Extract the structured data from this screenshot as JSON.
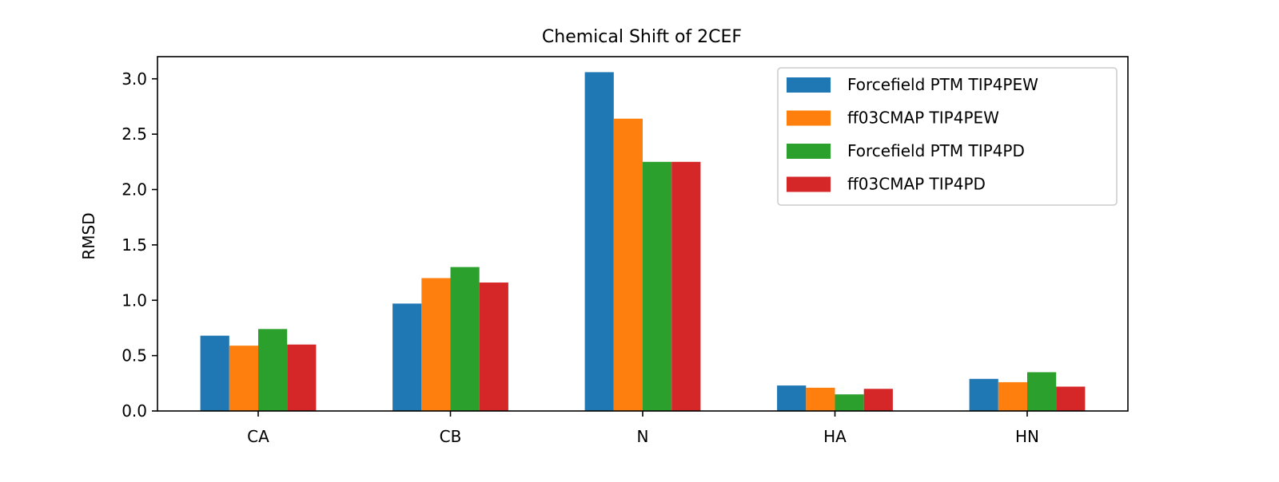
{
  "chart_data": {
    "type": "bar",
    "title": "Chemical Shift of 2CEF",
    "xlabel": "",
    "ylabel": "RMSD",
    "categories": [
      "CA",
      "CB",
      "N",
      "HA",
      "HN"
    ],
    "ylim": [
      0,
      3.2
    ],
    "yticks": [
      0.0,
      0.5,
      1.0,
      1.5,
      2.0,
      2.5,
      3.0
    ],
    "ytick_labels": [
      "0.0",
      "0.5",
      "1.0",
      "1.5",
      "2.0",
      "2.5",
      "3.0"
    ],
    "legend_position": "top-right",
    "grid": false,
    "series": [
      {
        "name": "Forcefield PTM TIP4PEW",
        "color": "#1f77b4",
        "values": [
          0.68,
          0.97,
          3.06,
          0.23,
          0.29
        ]
      },
      {
        "name": "ff03CMAP TIP4PEW",
        "color": "#ff7f0e",
        "values": [
          0.59,
          1.2,
          2.64,
          0.21,
          0.26
        ]
      },
      {
        "name": "Forcefield PTM TIP4PD",
        "color": "#2ca02c",
        "values": [
          0.74,
          1.3,
          2.25,
          0.15,
          0.35
        ]
      },
      {
        "name": "ff03CMAP TIP4PD",
        "color": "#d62728",
        "values": [
          0.6,
          1.16,
          2.25,
          0.2,
          0.22
        ]
      }
    ]
  }
}
